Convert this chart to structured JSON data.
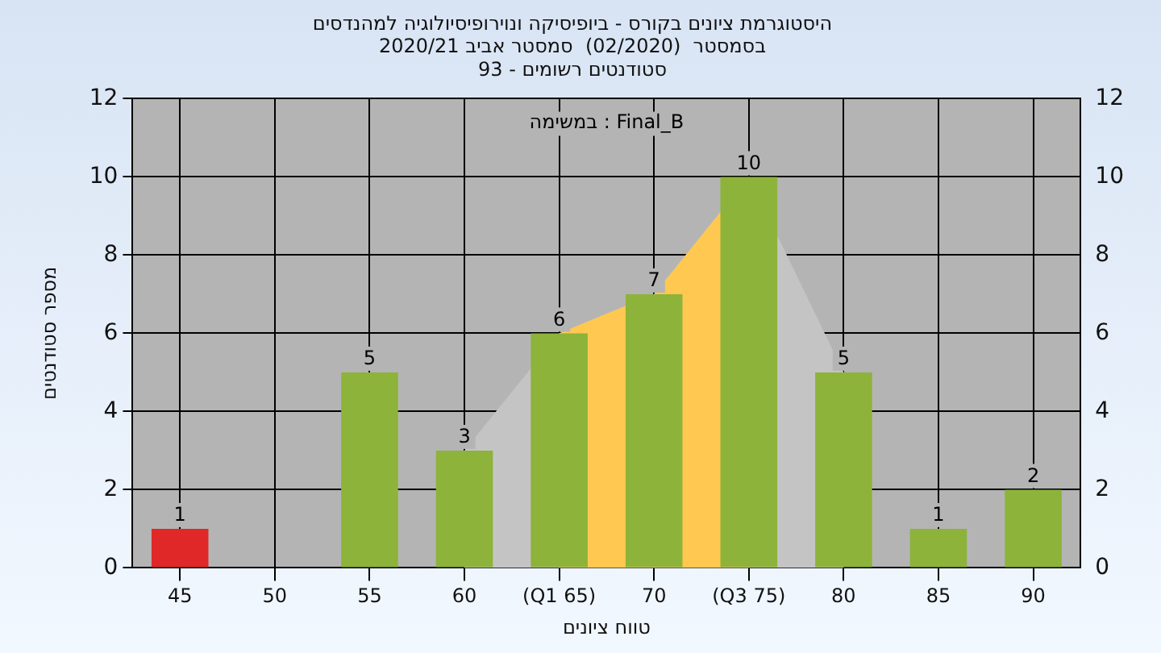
{
  "chart_data": {
    "type": "bar",
    "title": "היסטוגרמת ציונים בקורס - ביופיסיקה ונוירופיסיולוגיה למהנדסים\nבסמסטר  (02/2020)  סמסטר אביב 2020/21\nסטודנטים רשומים - 93",
    "xlabel": "טווח ציונים",
    "ylabel": "מספר סטודנטים",
    "annotations": [
      "במשימה : Final_B"
    ],
    "categories": [
      "45",
      "50",
      "55",
      "60",
      "(Q1 65)",
      "70",
      "(Q3 75)",
      "80",
      "85",
      "90"
    ],
    "series": [
      {
        "type": "area",
        "color": "#c4c4c4",
        "values": [
          null,
          null,
          null,
          3,
          6,
          7,
          10,
          5,
          null,
          null
        ]
      },
      {
        "type": "area",
        "color": "#ffc850",
        "values": [
          null,
          null,
          null,
          null,
          6,
          7,
          10,
          null,
          null,
          null
        ]
      },
      {
        "colors": [
          "#e02828",
          "#8db33a",
          "#8db33a",
          "#8db33a",
          "#8db33a",
          "#8db33a",
          "#8db33a",
          "#8db33a",
          "#8db33a",
          "#8db33a"
        ],
        "values": [
          1,
          0,
          5,
          3,
          6,
          7,
          10,
          5,
          1,
          2
        ],
        "value_labels": [
          "1",
          null,
          "5",
          "3",
          "6",
          "7",
          "10",
          "5",
          "1",
          "2"
        ]
      }
    ],
    "ylim": [
      0,
      12
    ],
    "yticks": [
      0,
      2,
      4,
      6,
      8,
      10,
      12
    ],
    "y2lim": [
      0,
      12
    ],
    "y2ticks": [
      0,
      2,
      4,
      6,
      8,
      10,
      12
    ],
    "grid": true,
    "legend": false
  }
}
